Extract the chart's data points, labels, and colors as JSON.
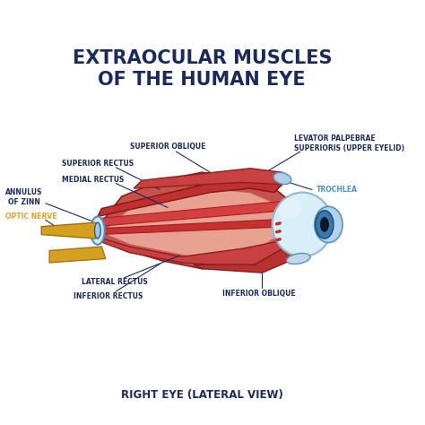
{
  "title_line1": "EXTRAOCULAR MUSCLES",
  "title_line2": "OF THE HUMAN EYE",
  "subtitle": "RIGHT EYE (LATERAL VIEW)",
  "title_color": "#1a2a5e",
  "subtitle_color": "#1a2a5e",
  "bg_color": "#ffffff",
  "labels": {
    "superior_oblique": "SUPERIOR OBLIQUE",
    "superior_rectus": "SUPERIOR RECTUS",
    "medial_rectus": "MEDIAL RECTUS",
    "annulus_of_zinn": "ANNULUS\nOF ZINN",
    "optic_nerve": "OPTIC NERVE",
    "lateral_rectus": "LATERAL RECTUS",
    "inferior_rectus": "INFERIOR RECTUS",
    "inferior_oblique": "INFERIOR OBLIQUE",
    "levator": "LEVATOR PALPEBRAE\nSUPERIORIS (UPPER EYELID)",
    "trochlea": "TROCHLEA"
  },
  "label_color": "#1a2a5e",
  "optic_nerve_color": "#e8a020",
  "muscle_red": "#c0392b",
  "muscle_light_red": "#e74c3c",
  "muscle_fill": "#e8a090",
  "eye_white": "#d6e8f0",
  "eye_blue": "#4a90c4",
  "eye_dark_blue": "#1a3a6e",
  "line_color": "#1a2a5e",
  "optic_nerve_fill": "#d4a020"
}
